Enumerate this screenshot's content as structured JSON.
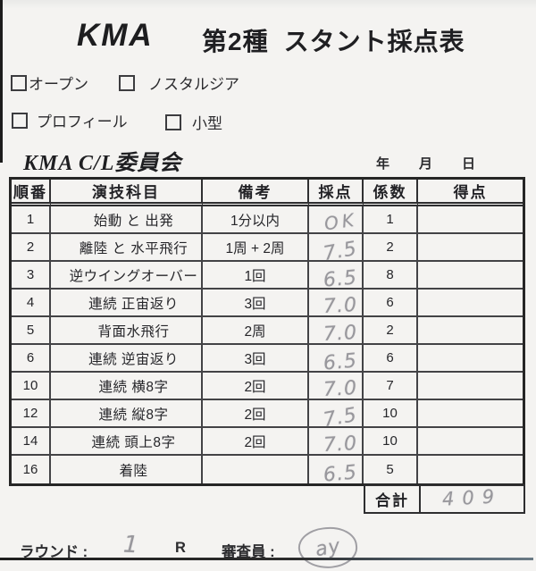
{
  "title": {
    "org": "KMA",
    "class_label": "第2種",
    "name": "スタント採点表"
  },
  "checkboxes": [
    {
      "label": "オープン",
      "checked": false
    },
    {
      "label": "ノスタルジア",
      "checked": false
    },
    {
      "label": "プロフィール",
      "checked": false
    },
    {
      "label": "小型",
      "checked": false
    }
  ],
  "committee": "KMA C/L委員会",
  "date_labels": {
    "year": "年",
    "month": "月",
    "day": "日"
  },
  "table": {
    "headers": [
      "順番",
      "演技科目",
      "備考",
      "採点",
      "係数",
      "得点"
    ],
    "rows": [
      {
        "no": "1",
        "subject": "始動 と 出発",
        "remark": "1分以内",
        "score": "OK",
        "factor": "1",
        "points": ""
      },
      {
        "no": "2",
        "subject": "離陸 と 水平飛行",
        "remark": "1周 + 2周",
        "score": "7.5",
        "factor": "2",
        "points": ""
      },
      {
        "no": "3",
        "subject": "逆ウイングオーバー",
        "remark": "1回",
        "score": "6.5",
        "factor": "8",
        "points": ""
      },
      {
        "no": "4",
        "subject": "連続 正宙返り",
        "remark": "3回",
        "score": "7.0",
        "factor": "6",
        "points": ""
      },
      {
        "no": "5",
        "subject": "背面水飛行",
        "remark": "2周",
        "score": "7.0",
        "factor": "2",
        "points": ""
      },
      {
        "no": "6",
        "subject": "連続 逆宙返り",
        "remark": "3回",
        "score": "6.5",
        "factor": "6",
        "points": ""
      },
      {
        "no": "10",
        "subject": "連続 横8字",
        "remark": "2回",
        "score": "7.0",
        "factor": "7",
        "points": ""
      },
      {
        "no": "12",
        "subject": "連続 縦8字",
        "remark": "2回",
        "score": "7.5",
        "factor": "10",
        "points": ""
      },
      {
        "no": "14",
        "subject": "連続 頭上8字",
        "remark": "2回",
        "score": "7.0",
        "factor": "10",
        "points": ""
      },
      {
        "no": "16",
        "subject": "着陸",
        "remark": "",
        "score": "6.5",
        "factor": "5",
        "points": ""
      }
    ],
    "total_label": "合計",
    "total_value": "409"
  },
  "footer": {
    "round_label": "ラウンド :",
    "round_value": "1",
    "round_unit": "R",
    "judge_label": "審査員 :",
    "judge_signature": "ay"
  },
  "colors": {
    "pencil": "#98979c",
    "border": "#2b2b2b",
    "paper": "#f4f3f1"
  }
}
